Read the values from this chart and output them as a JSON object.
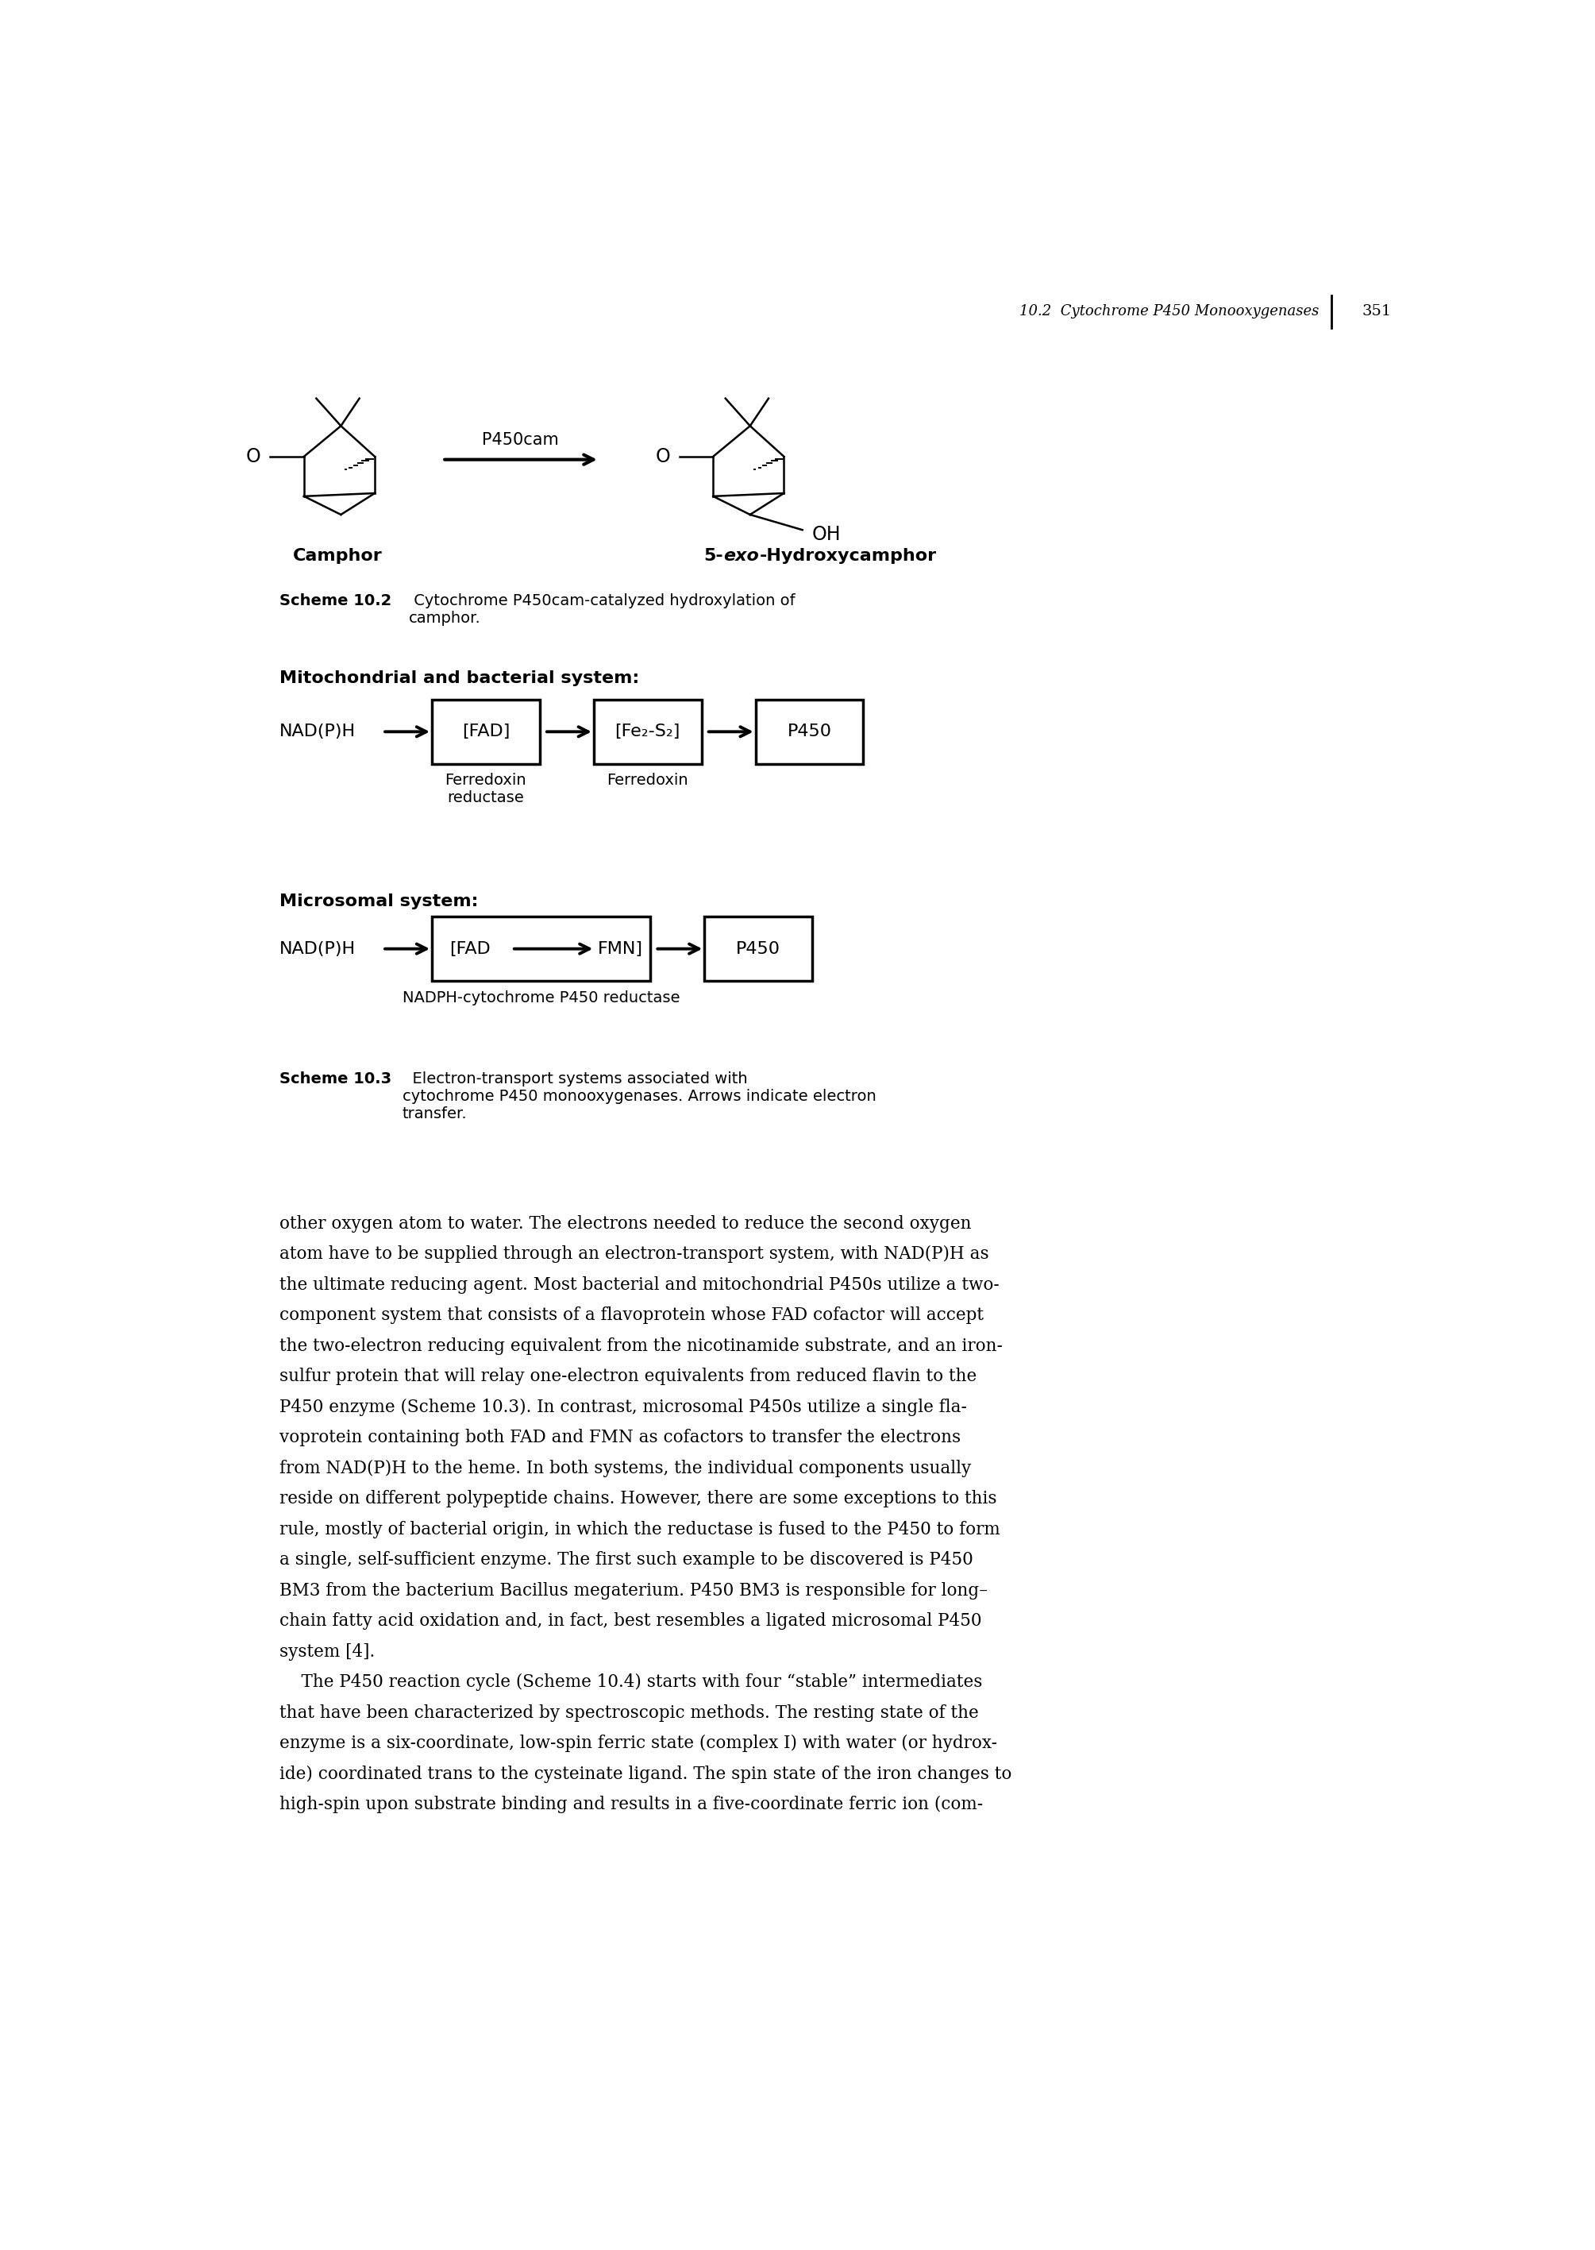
{
  "page_header": "10.2  Cytochrome P450 Monooxygenases",
  "page_number": "351",
  "background_color": "#ffffff",
  "mito_section_title": "Mitochondrial and bacterial system:",
  "micro_section_title": "Microsomal system:",
  "micro_label_below": "NADPH-cytochrome P450 reductase",
  "scheme103_caption_bold": "Scheme 10.3",
  "scheme103_caption_normal": "  Electron-transport systems associated with\ncytochrome P450 monooxygenases. Arrows indicate electron\ntransfer.",
  "body_text_lines": [
    "other oxygen atom to water. The electrons needed to reduce the second oxygen",
    "atom have to be supplied through an electron-transport system, with NAD(P)H as",
    "the ultimate reducing agent. Most bacterial and mitochondrial P450s utilize a two-",
    "component system that consists of a flavoprotein whose FAD cofactor will accept",
    "the two-electron reducing equivalent from the nicotinamide substrate, and an iron-",
    "sulfur protein that will relay one-electron equivalents from reduced flavin to the",
    "P450 enzyme (Scheme 10.3). In contrast, microsomal P450s utilize a single fla-",
    "voprotein containing both FAD and FMN as cofactors to transfer the electrons",
    "from NAD(P)H to the heme. In both systems, the individual components usually",
    "reside on different polypeptide chains. However, there are some exceptions to this",
    "rule, mostly of bacterial origin, in which the reductase is fused to the P450 to form",
    "a single, self-sufficient enzyme. The first such example to be discovered is P450",
    "BM3 from the bacterium Bacillus megaterium. P450 BM3 is responsible for long–",
    "chain fatty acid oxidation and, in fact, best resembles a ligated microsomal P450",
    "system [4].",
    "    The P450 reaction cycle (Scheme 10.4) starts with four “stable” intermediates",
    "that have been characterized by spectroscopic methods. The resting state of the",
    "enzyme is a six-coordinate, low-spin ferric state (complex I) with water (or hydrox-",
    "ide) coordinated trans to the cysteinate ligand. The spin state of the iron changes to",
    "high-spin upon substrate binding and results in a five-coordinate ferric ion (com-"
  ]
}
